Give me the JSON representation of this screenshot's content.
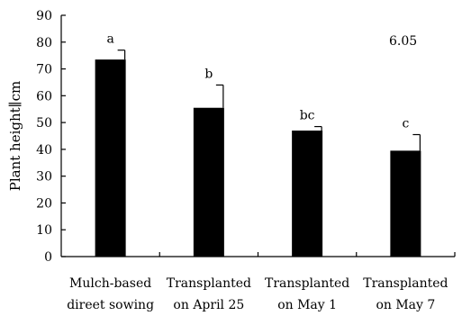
{
  "chart_data": {
    "type": "bar",
    "categories": [
      [
        "Mulch-based",
        "direet sowing"
      ],
      [
        "Transplanted",
        "on April 25"
      ],
      [
        "Transplanted",
        "on May 1"
      ],
      [
        "Transplanted",
        "on May 7"
      ]
    ],
    "values": [
      73.5,
      55.5,
      47,
      39.5
    ],
    "error": [
      3.5,
      8.5,
      1.5,
      6
    ],
    "significance": [
      "a",
      "b",
      "bc",
      "c"
    ],
    "ylabel": "Plant height∥cm",
    "ylim": [
      0,
      90
    ],
    "yticks": [
      0,
      10,
      20,
      30,
      40,
      50,
      60,
      70,
      80,
      90
    ],
    "annotation": "6.05",
    "bar_color": "#000000",
    "grid": false,
    "legend": "none"
  }
}
